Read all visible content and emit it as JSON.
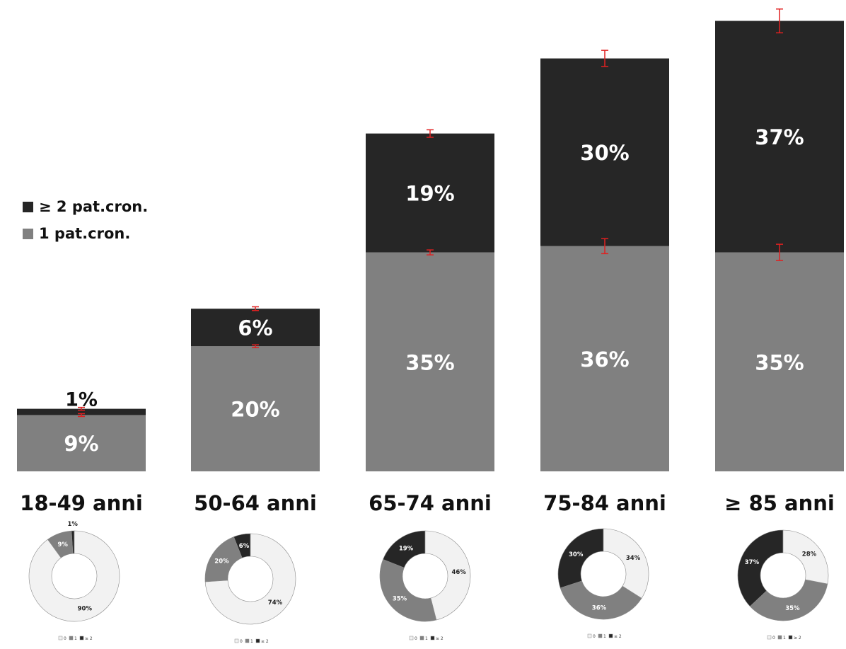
{
  "legend": {
    "items": [
      {
        "label": "≥ 2 pat.cron.",
        "color": "#262626"
      },
      {
        "label": "1 pat.cron.",
        "color": "#808080"
      }
    ]
  },
  "colors": {
    "one": "#808080",
    "two_plus": "#262626",
    "zero_donut": "#f2f2f2",
    "error_bar": "#e02020"
  },
  "chart_data": [
    {
      "type": "bar",
      "stacked": true,
      "categories": [
        "18-49 anni",
        "50-64 anni",
        "65-74 anni",
        "75-84 anni",
        "≥ 85 anni"
      ],
      "series": [
        {
          "name": "1 pat.cron.",
          "values": [
            9,
            20,
            35,
            36,
            35
          ],
          "labels": [
            "9%",
            "20%",
            "35%",
            "36%",
            "35%"
          ]
        },
        {
          "name": "≥ 2 pat.cron.",
          "values": [
            1,
            6,
            19,
            30,
            37
          ],
          "labels": [
            "1%",
            "6%",
            "19%",
            "30%",
            "37%"
          ]
        }
      ],
      "error_bars": true,
      "legend_position": "left-middle",
      "axes_visible": false
    },
    {
      "type": "pie",
      "title": "18-49 anni",
      "categories": [
        "0",
        "1",
        "≥ 2"
      ],
      "values": [
        90,
        9,
        1
      ],
      "labels": [
        "90%",
        "9%",
        "1%"
      ],
      "legend": [
        "0",
        "1",
        "≥ 2"
      ]
    },
    {
      "type": "pie",
      "title": "50-64 anni",
      "categories": [
        "0",
        "1",
        "≥ 2"
      ],
      "values": [
        74,
        20,
        6
      ],
      "labels": [
        "74%",
        "20%",
        "6%"
      ],
      "legend": [
        "0",
        "1",
        "≥ 2"
      ]
    },
    {
      "type": "pie",
      "title": "65-74 anni",
      "categories": [
        "0",
        "1",
        "≥ 2"
      ],
      "values": [
        46,
        35,
        19
      ],
      "labels": [
        "46%",
        "35%",
        "19%"
      ],
      "legend": [
        "0",
        "1",
        "≥ 2"
      ]
    },
    {
      "type": "pie",
      "title": "75-84 anni",
      "categories": [
        "0",
        "1",
        "≥ 2"
      ],
      "values": [
        34,
        36,
        30
      ],
      "labels": [
        "34%",
        "36%",
        "30%"
      ],
      "legend": [
        "0",
        "1",
        "≥ 2"
      ]
    },
    {
      "type": "pie",
      "title": "≥ 85 anni",
      "categories": [
        "0",
        "1",
        "≥ 2"
      ],
      "values": [
        28,
        35,
        37
      ],
      "labels": [
        "28%",
        "35%",
        "37%"
      ],
      "legend": [
        "0",
        "1",
        "≥ 2"
      ]
    }
  ]
}
